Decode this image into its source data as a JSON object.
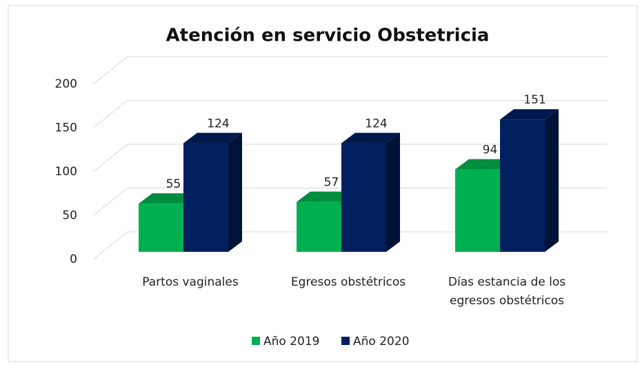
{
  "chart_data": {
    "type": "bar3d",
    "title": "Atención en servicio Obstetricia",
    "categories": [
      "Partos vaginales",
      "Egresos obstétricos",
      "Días estancia de los egresos obstétricos"
    ],
    "series": [
      {
        "name": "Año 2019",
        "color": "#00b050",
        "values": [
          55,
          57,
          94
        ]
      },
      {
        "name": "Año 2020",
        "color": "#002060",
        "values": [
          124,
          124,
          151
        ]
      }
    ],
    "ylim": [
      0,
      200
    ],
    "yticks": [
      0,
      50,
      100,
      150,
      200
    ],
    "grid": true,
    "legend": "bottom"
  }
}
